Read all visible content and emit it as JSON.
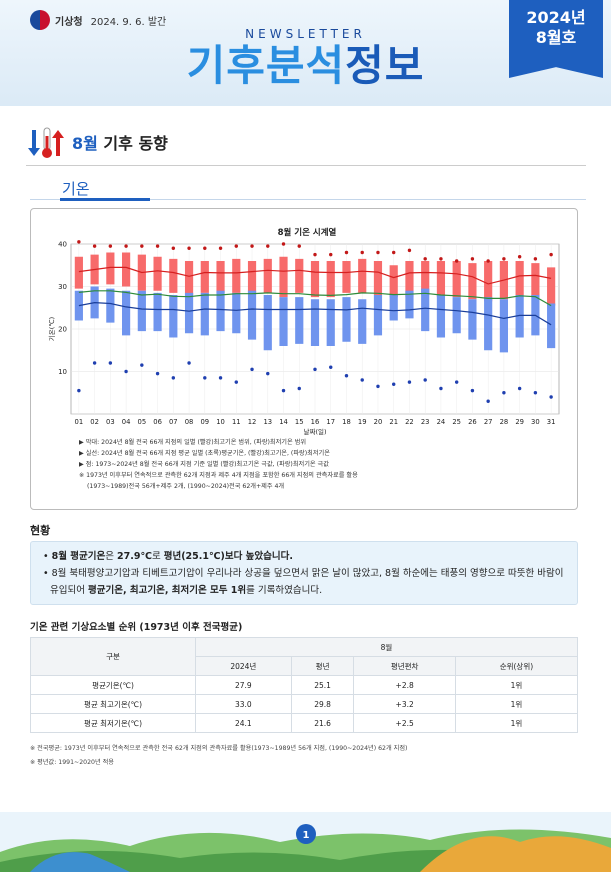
{
  "header": {
    "agency": "기상청",
    "date": "2024. 9. 6. 발간",
    "newsletter": "NEWSLETTER",
    "title_accent": "기후분석",
    "title_rest": "정보",
    "badge_year": "2024년",
    "badge_month": "8월호"
  },
  "section": {
    "title_month": "8월",
    "title_rest": " 기후 동향",
    "subtitle": "기온"
  },
  "chart_data": {
    "type": "bar",
    "title": "8월 기온 시계열",
    "xlabel": "날짜(일)",
    "ylabel": "기온(℃)",
    "ylim": [
      0,
      40
    ],
    "yticks": [
      "0",
      "10",
      "20",
      "30",
      "40"
    ],
    "categories": [
      "01",
      "02",
      "03",
      "04",
      "05",
      "06",
      "07",
      "08",
      "09",
      "10",
      "11",
      "12",
      "13",
      "14",
      "15",
      "16",
      "17",
      "18",
      "19",
      "20",
      "21",
      "22",
      "23",
      "24",
      "25",
      "26",
      "27",
      "28",
      "29",
      "30",
      "31"
    ],
    "tmax_range": [
      [
        29.5,
        37
      ],
      [
        30.5,
        37.5
      ],
      [
        30.5,
        38
      ],
      [
        30,
        38
      ],
      [
        29,
        37.5
      ],
      [
        29,
        37
      ],
      [
        28.5,
        36.5
      ],
      [
        28,
        36
      ],
      [
        28.5,
        36
      ],
      [
        28.5,
        36
      ],
      [
        28.5,
        36.5
      ],
      [
        28.5,
        36
      ],
      [
        28.5,
        36.5
      ],
      [
        27.5,
        37
      ],
      [
        28.5,
        36.5
      ],
      [
        27.5,
        36
      ],
      [
        27.5,
        36
      ],
      [
        28.5,
        36
      ],
      [
        28.5,
        36.5
      ],
      [
        28,
        36
      ],
      [
        27.5,
        35
      ],
      [
        27.5,
        36
      ],
      [
        28,
        36
      ],
      [
        27.5,
        36
      ],
      [
        27.5,
        36
      ],
      [
        27,
        35.5
      ],
      [
        26.5,
        36
      ],
      [
        27,
        36
      ],
      [
        28,
        36
      ],
      [
        27.5,
        35.5
      ],
      [
        25.5,
        34.5
      ]
    ],
    "tmin_range": [
      [
        22,
        29
      ],
      [
        22.5,
        30
      ],
      [
        21.5,
        29.5
      ],
      [
        18.5,
        29
      ],
      [
        19.5,
        29
      ],
      [
        19.5,
        28.5
      ],
      [
        18,
        28
      ],
      [
        19,
        28.5
      ],
      [
        18.5,
        28.5
      ],
      [
        19.5,
        29
      ],
      [
        19,
        28.5
      ],
      [
        17.5,
        29
      ],
      [
        15,
        28
      ],
      [
        16,
        27.5
      ],
      [
        16.5,
        27.5
      ],
      [
        16,
        27
      ],
      [
        16,
        27
      ],
      [
        17,
        27.5
      ],
      [
        16.5,
        27
      ],
      [
        18.5,
        28
      ],
      [
        22,
        28
      ],
      [
        22.5,
        29
      ],
      [
        19.5,
        29.5
      ],
      [
        18,
        28
      ],
      [
        19,
        27.5
      ],
      [
        17.5,
        27
      ],
      [
        15,
        27.5
      ],
      [
        14.5,
        27
      ],
      [
        18,
        28
      ],
      [
        18.5,
        28
      ],
      [
        15.5,
        26
      ]
    ],
    "series": [
      {
        "name": "평균기온",
        "values": [
          28.6,
          29,
          29,
          28.6,
          28,
          28.2,
          27.7,
          27.6,
          28,
          28,
          28.3,
          28.3,
          28.5,
          28.3,
          28.3,
          28,
          27.9,
          28.1,
          28.5,
          28.4,
          28.1,
          28.2,
          28.4,
          28,
          27.8,
          27.6,
          27.2,
          27.2,
          27.8,
          27.6,
          25.5
        ]
      },
      {
        "name": "최고기온",
        "values": [
          33.5,
          34,
          34.5,
          34.5,
          33.3,
          33.7,
          33.3,
          32.4,
          33.3,
          33.2,
          33.2,
          33.5,
          33.8,
          33.6,
          33.8,
          33.4,
          33.3,
          33.3,
          33.6,
          33.4,
          32.1,
          33.2,
          33.3,
          33.2,
          33,
          32.3,
          30.6,
          31.5,
          32.5,
          32.6,
          31.9
        ]
      },
      {
        "name": "최저기온",
        "values": [
          25.5,
          26.2,
          26,
          25.2,
          24.7,
          24.6,
          24.6,
          24.2,
          24.7,
          24.6,
          24.4,
          24.7,
          24.6,
          24.6,
          24.6,
          24.7,
          24.6,
          24.5,
          24.9,
          24.6,
          24.3,
          24.5,
          24.9,
          24.6,
          24.3,
          23.9,
          23.3,
          22.5,
          23.2,
          23.2,
          21
        ]
      },
      {
        "name": "최고기온 극값",
        "values": [
          40.5,
          39.5,
          39.5,
          39.5,
          39.5,
          39.5,
          39,
          39,
          39,
          39,
          39.5,
          39.5,
          39.5,
          40,
          39.5,
          37.5,
          37.5,
          38,
          38,
          38,
          38,
          38.5,
          36.5,
          36.5,
          36,
          36.5,
          36,
          36.5,
          37,
          36.5,
          37.5
        ]
      },
      {
        "name": "최저기온 극값",
        "values": [
          5.5,
          12,
          12,
          10,
          11.5,
          9.5,
          8.5,
          12,
          8.5,
          8.5,
          7.5,
          10.5,
          9.5,
          5.5,
          6,
          10.5,
          11,
          9,
          8,
          6.5,
          7,
          7.5,
          8,
          6,
          7.5,
          5.5,
          3,
          5,
          6,
          5,
          4
        ]
      }
    ],
    "colors": {
      "tmax_bar": "#f76b6b",
      "tmin_bar": "#6f94ee",
      "tavg_line": "#2e8b3a",
      "tmax_line": "#d62020",
      "tmin_line": "#1a3e9a",
      "tmax_dot": "#c21818",
      "tmin_dot": "#1f3fb0"
    },
    "legend_notes": [
      "▶ 막대: 2024년 8월 전국 66개 지점의 일별 (빨강)최고기온 범위, (파랑)최저기온 범위",
      "▶ 실선: 2024년 8월 전국 66개 지점 평균 일별 (초록)평균기온, (빨강)최고기온, (파랑)최저기온",
      "▶ 점: 1973~2024년 8월 전국 66개 지점 기준 일별 (빨강)최고기온 극값, (파랑)최저기온 극값",
      "※ 1973년 이후부터 연속적으로 관측한 62개 지점과 제주 4개 지점을 포함한 66개 지점의 관측자료를 활용",
      "(1973~1989)전국 56개+제주 2개, (1990~2024)전국 62개+제주 4개"
    ]
  },
  "status": {
    "heading": "현황",
    "line1_a": "8월 평균기온",
    "line1_b": "은 ",
    "line1_c": "27.9℃",
    "line1_d": "로 ",
    "line1_e": "평년(25.1℃)보다 높았습니다.",
    "line2_a": "8월 북태평양고기압과 티베트고기압이 우리나라 상공을 덮으면서 맑은 날이 많았고, 8월 하순에는 태풍의 영향으로 따뜻한 바람이 유입되어 ",
    "line2_b": "평균기온, 최고기온, 최저기온 모두 1위",
    "line2_c": "를 기록하였습니다."
  },
  "table": {
    "heading": "기온 관련 기상요소별 순위 (1973년 이후 전국평균)",
    "col_group": "구분",
    "col_month": "8월",
    "columns": [
      "2024년",
      "평년",
      "평년편차",
      "순위(상위)"
    ],
    "rows": [
      {
        "label": "평균기온(℃)",
        "values": [
          "27.9",
          "25.1",
          "+2.8",
          "1위"
        ]
      },
      {
        "label": "평균 최고기온(℃)",
        "values": [
          "33.0",
          "29.8",
          "+3.2",
          "1위"
        ]
      },
      {
        "label": "평균 최저기온(℃)",
        "values": [
          "24.1",
          "21.6",
          "+2.5",
          "1위"
        ]
      }
    ]
  },
  "footnotes": [
    "※ 전국평균: 1973년 이후부터 연속적으로 관측한 전국 62개 지점의 관측자료를 활용(1973~1989년 56개 지점, (1990~2024년) 62개 지점)",
    "※ 평년값: 1991~2020년 적용"
  ],
  "page_number": "1"
}
